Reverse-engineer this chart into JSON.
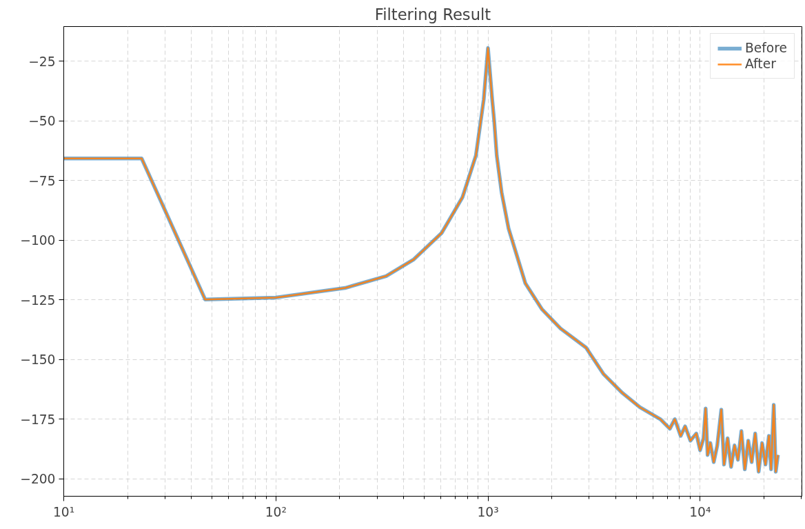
{
  "chart_data": {
    "type": "line",
    "title": "Filtering Result",
    "x": [
      10,
      23.3,
      46.4,
      100,
      212,
      331,
      447,
      604,
      758,
      877,
      955,
      1000,
      1047,
      1070,
      1100,
      1160,
      1250,
      1500,
      1800,
      2200,
      2900,
      3500,
      4300,
      5200,
      6500,
      7200,
      7600,
      8100,
      8500,
      9000,
      9600,
      10000,
      10380,
      10620,
      10850,
      11180,
      11600,
      12050,
      12590,
      12970,
      13480,
      14000,
      14530,
      15080,
      15660,
      16250,
      16870,
      17510,
      18190,
      18880,
      19600,
      20340,
      21110,
      21610,
      22250,
      22740,
      23280
    ],
    "series": [
      {
        "name": "Before",
        "color": "#1f77b4",
        "values": [
          -65.7,
          -65.7,
          -124.8,
          -124,
          -120,
          -115,
          -108,
          -97,
          -82,
          -64.5,
          -41,
          -19.4,
          -41,
          -50,
          -64.5,
          -80,
          -95,
          -118,
          -129,
          -137,
          -145,
          -156,
          -164,
          -170,
          -175,
          -179,
          -175,
          -182,
          -178,
          -184,
          -181,
          -188,
          -183,
          -170.5,
          -190,
          -185,
          -193,
          -186,
          -171,
          -194,
          -183,
          -195,
          -186,
          -192,
          -180,
          -196,
          -184,
          -193,
          -181,
          -197,
          -185,
          -194,
          -182,
          -196,
          -169,
          -197,
          -190
        ]
      },
      {
        "name": "After",
        "color": "#ff7f0e",
        "values": [
          -65.7,
          -65.7,
          -124.8,
          -124,
          -120,
          -115,
          -108,
          -97,
          -82,
          -64.5,
          -41,
          -19.4,
          -41,
          -50,
          -64.5,
          -80,
          -95,
          -118,
          -129,
          -137,
          -145,
          -156,
          -164,
          -170,
          -175,
          -179,
          -175,
          -182,
          -178,
          -184,
          -181,
          -188,
          -183,
          -170.5,
          -190,
          -185,
          -193,
          -186,
          -171,
          -194,
          -183,
          -195,
          -186,
          -192,
          -180,
          -196,
          -184,
          -193,
          -181,
          -197,
          -185,
          -194,
          -182,
          -196,
          -169,
          -197,
          -190
        ]
      }
    ],
    "log": "x",
    "xlim": [
      10,
      30200
    ],
    "xticks": [
      {
        "value": 10,
        "label": "10¹"
      },
      {
        "value": 100,
        "label": "10²"
      },
      {
        "value": 1000,
        "label": "10³"
      },
      {
        "value": 10000,
        "label": "10⁴"
      }
    ],
    "ylim": [
      -207.3,
      -10.4
    ],
    "yticks": [
      -25,
      -50,
      -75,
      -100,
      -125,
      -150,
      -175,
      -200
    ],
    "grid": true,
    "legend": "top right"
  }
}
